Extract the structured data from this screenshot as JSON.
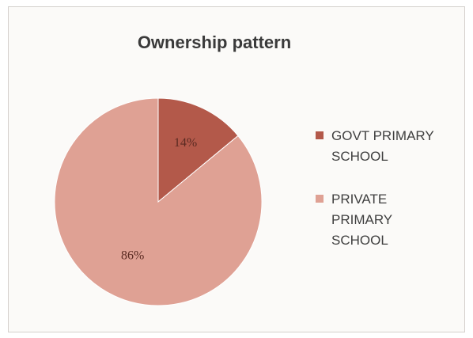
{
  "chart_data": {
    "type": "pie",
    "title": "Ownership pattern",
    "categories": [
      "GOVT PRIMARY SCHOOL",
      "PRIVATE PRIMARY SCHOOL"
    ],
    "values": [
      14,
      86
    ],
    "data_labels": [
      "14%",
      "86%"
    ],
    "colors": [
      "#b3594a",
      "#dfa194"
    ],
    "legend_position": "right",
    "legend": [
      {
        "lines": [
          "GOVT PRIMARY",
          "SCHOOL"
        ]
      },
      {
        "lines": [
          "PRIVATE",
          "PRIMARY",
          "SCHOOL"
        ]
      }
    ]
  }
}
